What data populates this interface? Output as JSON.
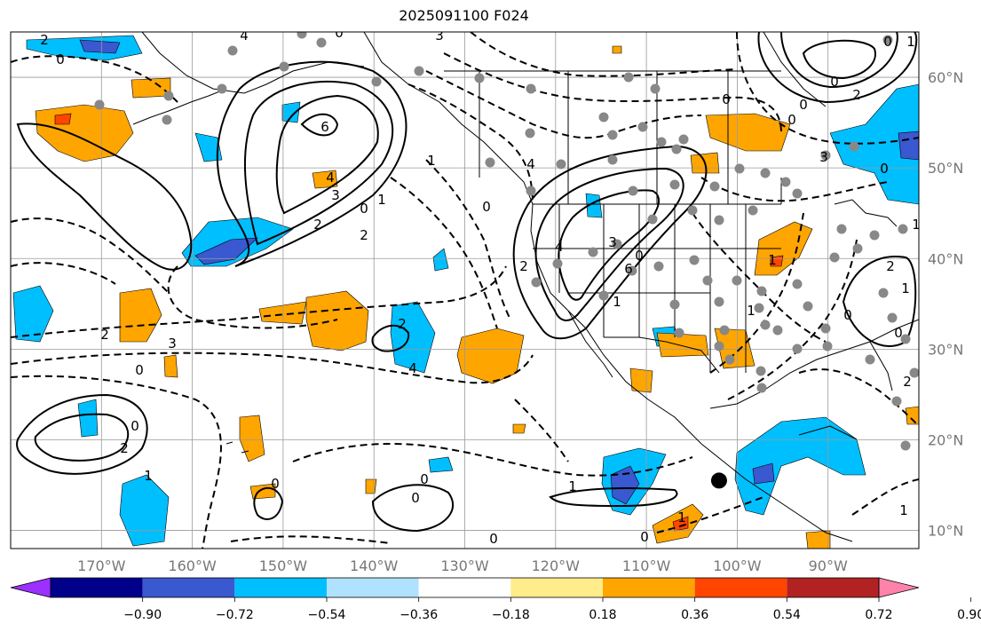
{
  "title": "2025091100 F024",
  "map": {
    "projection": "plate-carree",
    "lon_range": [
      -180,
      -80
    ],
    "lat_range": [
      8,
      65
    ],
    "grid": true,
    "lon_ticks": [
      "170°W",
      "160°W",
      "150°W",
      "140°W",
      "130°W",
      "120°W",
      "110°W",
      "100°W",
      "90°W"
    ],
    "lat_ticks": [
      "10°N",
      "20°N",
      "30°N",
      "40°N",
      "50°N",
      "60°N"
    ],
    "contour_labels": [
      "2",
      "0",
      "4",
      "0",
      "3",
      "6",
      "4",
      "3",
      "2",
      "0",
      "1",
      "1",
      "2",
      "0",
      "4",
      "3",
      "0",
      "6",
      "4",
      "2",
      "1",
      "0",
      "2",
      "0",
      "3",
      "0",
      "0",
      "1",
      "0",
      "1",
      "2",
      "1",
      "0",
      "0",
      "2",
      "1",
      "2",
      "3",
      "0",
      "4",
      "2",
      "2",
      "0",
      "1",
      "0",
      "0",
      "1",
      "1",
      "0",
      "0",
      "0",
      "1",
      "1",
      "0"
    ],
    "marker": {
      "type": "black-dot",
      "lon": -102,
      "lat": 15.5
    },
    "station_color": "#888888",
    "shading_colors": {
      "neg_strong": "#3a58cf",
      "neg_mid": "#00bfff",
      "pos_mid": "#ffa500",
      "pos_strong": "#ff4500"
    }
  },
  "colorbar": {
    "labels": [
      "−0.90",
      "−0.72",
      "−0.54",
      "−0.36",
      "−0.18",
      "0.18",
      "0.36",
      "0.54",
      "0.72",
      "0.90"
    ],
    "colors": [
      "#9b30ff",
      "#00008b",
      "#3a58cf",
      "#00bfff",
      "#b0e2ff",
      "#ffffff",
      "#ffec8b",
      "#ffa500",
      "#ff4500",
      "#b22222",
      "#ff82ab"
    ],
    "extend": "both"
  }
}
